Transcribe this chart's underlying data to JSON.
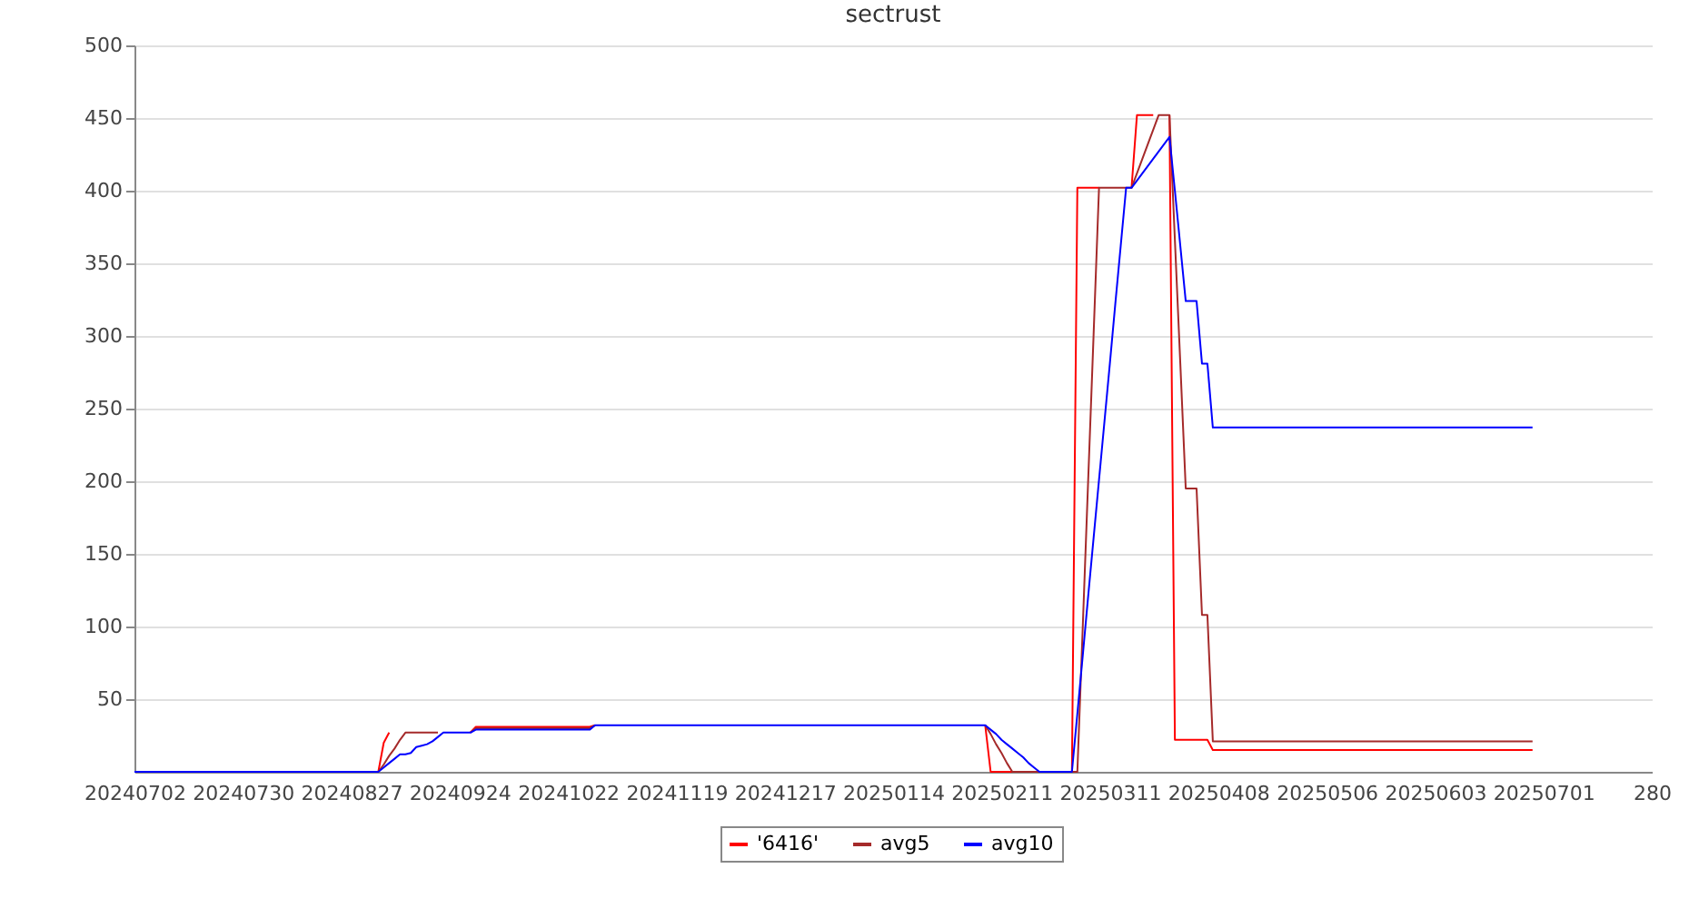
{
  "chart_data": {
    "type": "line",
    "title": "sectrust",
    "categories": [
      "20240702",
      null,
      null,
      null,
      null,
      null,
      null,
      null,
      null,
      null,
      null,
      null,
      null,
      null,
      null,
      null,
      null,
      null,
      null,
      null,
      "20240730",
      null,
      null,
      null,
      null,
      null,
      null,
      null,
      null,
      null,
      null,
      null,
      null,
      null,
      null,
      null,
      null,
      null,
      null,
      null,
      "20240827",
      null,
      null,
      null,
      null,
      null,
      null,
      null,
      null,
      null,
      null,
      null,
      null,
      null,
      null,
      null,
      null,
      null,
      null,
      null,
      "20240924",
      null,
      null,
      null,
      null,
      null,
      null,
      null,
      null,
      null,
      null,
      null,
      null,
      null,
      null,
      null,
      null,
      null,
      null,
      null,
      "20241022",
      null,
      null,
      null,
      null,
      null,
      null,
      null,
      null,
      null,
      null,
      null,
      null,
      null,
      null,
      null,
      null,
      null,
      null,
      null,
      "20241119",
      null,
      null,
      null,
      null,
      null,
      null,
      null,
      null,
      null,
      null,
      null,
      null,
      null,
      null,
      null,
      null,
      null,
      null,
      null,
      "20241217",
      null,
      null,
      null,
      null,
      null,
      null,
      null,
      null,
      null,
      null,
      null,
      null,
      null,
      null,
      null,
      null,
      null,
      null,
      null,
      "20250114",
      null,
      null,
      null,
      null,
      null,
      null,
      null,
      null,
      null,
      null,
      null,
      null,
      null,
      null,
      null,
      null,
      null,
      null,
      null,
      "20250211",
      null,
      null,
      null,
      null,
      null,
      null,
      null,
      null,
      null,
      null,
      null,
      null,
      null,
      null,
      null,
      null,
      null,
      null,
      null,
      "20250311",
      null,
      null,
      null,
      null,
      null,
      null,
      null,
      null,
      null,
      null,
      null,
      null,
      null,
      null,
      null,
      null,
      null,
      null,
      null,
      "20250408",
      null,
      null,
      null,
      null,
      null,
      null,
      null,
      null,
      null,
      null,
      null,
      null,
      null,
      null,
      null,
      null,
      null,
      null,
      null,
      "20250506",
      null,
      null,
      null,
      null,
      null,
      null,
      null,
      null,
      null,
      null,
      null,
      null,
      null,
      null,
      null,
      null,
      null,
      null,
      null,
      "20250603",
      null,
      null,
      null,
      null,
      null,
      null,
      null,
      null,
      null,
      null,
      null,
      null,
      null,
      null,
      null,
      null,
      null,
      null,
      null,
      "20250701",
      null,
      null,
      null,
      null,
      null,
      null,
      null,
      null,
      null,
      null,
      null,
      null,
      null,
      null,
      null,
      null,
      null,
      null,
      null,
      "280"
    ],
    "ylim": [
      0,
      500
    ],
    "yticks": [
      50,
      100,
      150,
      200,
      250,
      300,
      350,
      400,
      450,
      500
    ],
    "grid": "y",
    "legend": "bottom",
    "marker": "none",
    "line_style": "solid",
    "series": [
      {
        "name": "'6416'",
        "color": "#ff0000",
        "values": [
          null,
          null,
          null,
          null,
          null,
          null,
          null,
          null,
          null,
          null,
          null,
          null,
          null,
          null,
          null,
          null,
          null,
          null,
          null,
          null,
          null,
          null,
          null,
          null,
          null,
          null,
          null,
          null,
          null,
          null,
          null,
          null,
          null,
          null,
          null,
          null,
          null,
          null,
          null,
          null,
          null,
          null,
          null,
          null,
          null,
          0,
          20,
          27,
          null,
          null,
          null,
          null,
          null,
          null,
          null,
          null,
          null,
          null,
          null,
          null,
          null,
          null,
          27,
          31,
          31,
          31,
          31,
          31,
          31,
          31,
          31,
          31,
          31,
          31,
          31,
          31,
          31,
          31,
          31,
          31,
          31,
          31,
          31,
          31,
          31,
          32,
          null,
          null,
          null,
          null,
          null,
          null,
          null,
          null,
          null,
          null,
          null,
          null,
          null,
          null,
          null,
          null,
          null,
          null,
          null,
          null,
          null,
          null,
          null,
          null,
          null,
          null,
          null,
          null,
          null,
          null,
          null,
          null,
          null,
          null,
          null,
          null,
          null,
          null,
          null,
          null,
          null,
          null,
          null,
          null,
          null,
          null,
          null,
          null,
          null,
          null,
          null,
          null,
          null,
          null,
          null,
          null,
          null,
          null,
          null,
          null,
          null,
          null,
          null,
          null,
          null,
          null,
          null,
          null,
          null,
          null,
          null,
          32,
          0,
          0,
          0,
          0,
          0,
          null,
          null,
          null,
          null,
          null,
          null,
          null,
          null,
          null,
          null,
          0,
          402,
          402,
          402,
          402,
          402,
          null,
          null,
          null,
          null,
          null,
          402,
          452,
          452,
          452,
          452,
          null,
          null,
          452,
          22,
          22,
          22,
          22,
          22,
          22,
          22,
          15,
          15,
          15,
          15,
          15,
          15,
          15,
          15,
          15,
          15,
          15,
          15,
          15,
          15,
          15,
          15,
          15,
          15,
          15,
          15,
          15,
          15,
          15,
          15,
          15,
          15,
          15,
          15,
          15,
          15,
          15,
          15,
          15,
          15,
          15,
          15,
          15,
          15,
          15,
          15,
          15,
          15,
          15,
          15,
          15,
          15,
          15,
          15,
          15,
          15,
          15,
          15,
          15,
          15,
          15,
          15,
          15,
          15,
          15,
          15,
          null,
          null,
          null,
          null,
          null,
          null,
          null,
          null,
          null,
          null,
          null,
          null,
          null,
          null,
          null,
          null,
          null,
          null,
          null,
          null,
          null,
          null
        ]
      },
      {
        "name": "avg5",
        "color": "#a52a2a",
        "values": [
          null,
          null,
          null,
          null,
          null,
          null,
          null,
          null,
          null,
          null,
          null,
          null,
          null,
          null,
          null,
          null,
          null,
          null,
          null,
          null,
          null,
          null,
          null,
          null,
          null,
          null,
          null,
          null,
          null,
          null,
          null,
          null,
          null,
          null,
          null,
          null,
          null,
          null,
          null,
          null,
          null,
          null,
          null,
          null,
          null,
          0,
          5,
          11,
          16,
          22,
          27,
          27,
          27,
          27,
          27,
          27,
          27,
          null,
          null,
          null,
          null,
          null,
          27,
          30,
          30,
          30,
          30,
          30,
          30,
          30,
          30,
          30,
          30,
          30,
          30,
          30,
          30,
          30,
          30,
          30,
          30,
          30,
          30,
          30,
          30,
          32,
          null,
          null,
          null,
          null,
          null,
          null,
          null,
          null,
          null,
          null,
          null,
          null,
          null,
          null,
          null,
          null,
          null,
          null,
          null,
          null,
          null,
          null,
          null,
          null,
          null,
          null,
          null,
          null,
          null,
          null,
          null,
          null,
          null,
          null,
          null,
          null,
          null,
          null,
          null,
          null,
          null,
          null,
          null,
          null,
          null,
          null,
          null,
          null,
          null,
          null,
          null,
          null,
          null,
          null,
          null,
          null,
          null,
          null,
          null,
          null,
          null,
          null,
          null,
          null,
          null,
          null,
          null,
          null,
          null,
          null,
          null,
          32,
          26,
          19,
          13,
          6,
          0,
          0,
          0,
          0,
          0,
          0,
          null,
          null,
          null,
          null,
          null,
          0,
          0,
          100,
          201,
          301,
          402,
          402,
          402,
          402,
          402,
          402,
          402,
          412,
          422,
          432,
          442,
          452,
          452,
          452,
          366,
          281,
          195,
          195,
          195,
          108,
          108,
          21,
          21,
          21,
          21,
          21,
          21,
          21,
          21,
          21,
          21,
          21,
          21,
          21,
          21,
          21,
          21,
          21,
          21,
          21,
          21,
          21,
          21,
          21,
          21,
          21,
          21,
          21,
          21,
          21,
          21,
          21,
          21,
          21,
          21,
          21,
          21,
          21,
          21,
          21,
          21,
          21,
          21,
          21,
          21,
          21,
          21,
          21,
          21,
          21,
          21,
          21,
          21,
          21,
          21,
          21,
          21,
          21,
          21,
          21,
          21,
          null,
          null,
          null,
          null,
          null,
          null,
          null,
          null,
          null,
          null,
          null,
          null,
          null,
          null,
          null,
          null,
          null,
          null,
          null,
          null,
          null,
          null
        ]
      },
      {
        "name": "avg10",
        "color": "#0000ff",
        "values": [
          0,
          0,
          0,
          0,
          0,
          0,
          0,
          0,
          0,
          0,
          0,
          0,
          0,
          0,
          0,
          0,
          0,
          0,
          0,
          0,
          0,
          0,
          0,
          0,
          0,
          0,
          0,
          0,
          0,
          0,
          0,
          0,
          0,
          0,
          0,
          0,
          0,
          0,
          0,
          0,
          0,
          0,
          0,
          0,
          0,
          0,
          3,
          6,
          9,
          12,
          12,
          13,
          17,
          18,
          19,
          21,
          24,
          27,
          27,
          27,
          27,
          27,
          27,
          29,
          29,
          29,
          29,
          29,
          29,
          29,
          29,
          29,
          29,
          29,
          29,
          29,
          29,
          29,
          29,
          29,
          29,
          29,
          29,
          29,
          29,
          32,
          32,
          32,
          32,
          32,
          32,
          32,
          32,
          32,
          32,
          32,
          32,
          32,
          32,
          32,
          32,
          32,
          32,
          32,
          32,
          32,
          32,
          32,
          32,
          32,
          32,
          32,
          32,
          32,
          32,
          32,
          32,
          32,
          32,
          32,
          32,
          32,
          32,
          32,
          32,
          32,
          32,
          32,
          32,
          32,
          32,
          32,
          32,
          32,
          32,
          32,
          32,
          32,
          32,
          32,
          32,
          32,
          32,
          32,
          32,
          32,
          32,
          32,
          32,
          32,
          32,
          32,
          32,
          32,
          32,
          32,
          32,
          32,
          29,
          26,
          22,
          19,
          16,
          13,
          10,
          6,
          3,
          0,
          0,
          0,
          0,
          0,
          0,
          0,
          40,
          80,
          121,
          161,
          201,
          241,
          281,
          322,
          362,
          402,
          402,
          407,
          412,
          417,
          422,
          427,
          432,
          437,
          400,
          362,
          324,
          324,
          324,
          281,
          281,
          237,
          237,
          237,
          237,
          237,
          237,
          237,
          237,
          237,
          237,
          237,
          237,
          237,
          237,
          237,
          237,
          237,
          237,
          237,
          237,
          237,
          237,
          237,
          237,
          237,
          237,
          237,
          237,
          237,
          237,
          237,
          237,
          237,
          237,
          237,
          237,
          237,
          237,
          237,
          237,
          237,
          237,
          237,
          237,
          237,
          237,
          237,
          237,
          237,
          237,
          237,
          237,
          237,
          237,
          237,
          237,
          237,
          237,
          237,
          237,
          null,
          null,
          null,
          null,
          null,
          null,
          null,
          null,
          null,
          null,
          null,
          null,
          null,
          null,
          null,
          null,
          null,
          null,
          null,
          null,
          null,
          null
        ]
      }
    ]
  }
}
